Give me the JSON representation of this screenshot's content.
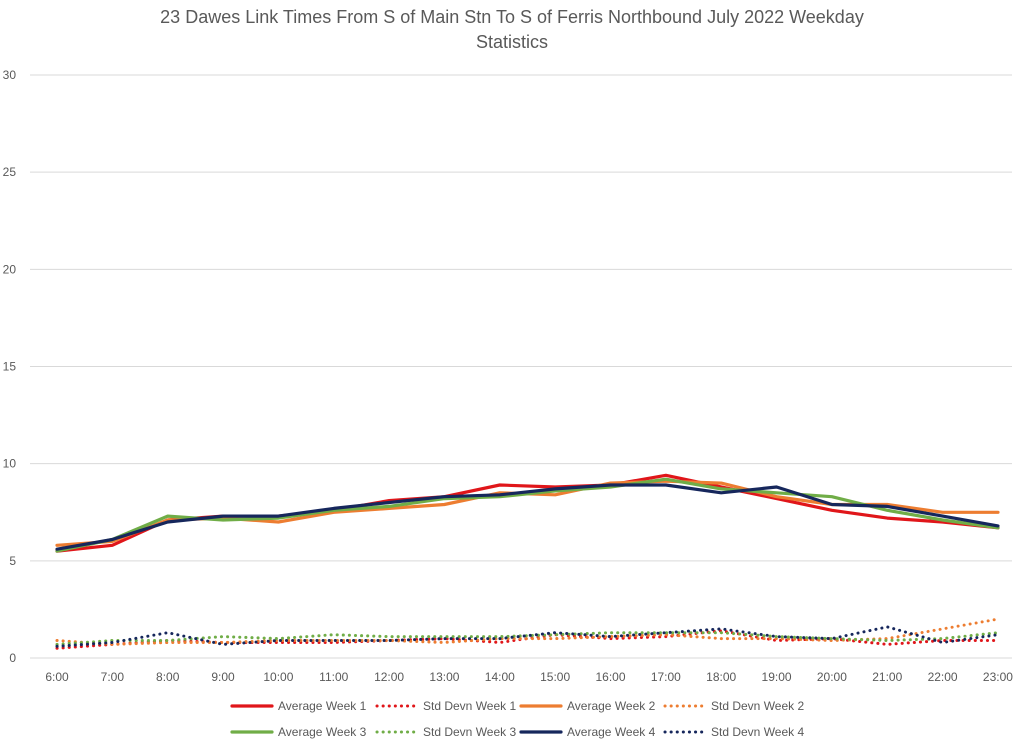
{
  "chart_data": {
    "type": "line",
    "title_lines": [
      "23 Dawes Link Times From S of Main Stn To S of Ferris Northbound July 2022 Weekday",
      "Statistics"
    ],
    "xlabel": "",
    "ylabel": "",
    "ylim": [
      0,
      30
    ],
    "y_ticks": [
      "0",
      "5",
      "10",
      "15",
      "20",
      "25",
      "30"
    ],
    "grid": true,
    "legend_position": "bottom",
    "categories": [
      "6:00",
      "7:00",
      "8:00",
      "9:00",
      "10:00",
      "11:00",
      "12:00",
      "13:00",
      "14:00",
      "15:00",
      "16:00",
      "17:00",
      "18:00",
      "19:00",
      "20:00",
      "21:00",
      "22:00",
      "23:00"
    ],
    "series": [
      {
        "name": "Average Week 1",
        "style": "solid",
        "color": "#e0161a",
        "values": [
          5.5,
          5.8,
          7.1,
          7.3,
          7.3,
          7.6,
          8.1,
          8.3,
          8.9,
          8.8,
          8.9,
          9.4,
          8.8,
          8.2,
          7.6,
          7.2,
          7.0,
          6.7
        ]
      },
      {
        "name": "Std Devn Week 1",
        "style": "dotted",
        "color": "#e0161a",
        "values": [
          0.5,
          0.7,
          0.9,
          0.8,
          0.8,
          0.8,
          0.9,
          1.0,
          0.8,
          1.2,
          1.0,
          1.1,
          1.4,
          0.9,
          1.0,
          0.7,
          0.9,
          0.9
        ]
      },
      {
        "name": "Average Week 2",
        "style": "solid",
        "color": "#ed7d31",
        "values": [
          5.8,
          6.0,
          7.1,
          7.2,
          7.0,
          7.5,
          7.7,
          7.9,
          8.5,
          8.4,
          9.0,
          9.1,
          9.0,
          8.3,
          7.9,
          7.9,
          7.5,
          7.5
        ]
      },
      {
        "name": "Std Devn Week 2",
        "style": "dotted",
        "color": "#ed7d31",
        "values": [
          0.9,
          0.7,
          0.8,
          0.8,
          0.9,
          0.9,
          0.9,
          0.8,
          1.0,
          1.0,
          1.1,
          1.2,
          1.0,
          1.0,
          0.9,
          1.0,
          1.5,
          2.0
        ]
      },
      {
        "name": "Average Week 3",
        "style": "solid",
        "color": "#70ad47",
        "values": [
          5.5,
          6.1,
          7.3,
          7.1,
          7.2,
          7.6,
          7.8,
          8.2,
          8.3,
          8.6,
          8.8,
          9.2,
          8.7,
          8.5,
          8.3,
          7.6,
          7.1,
          6.7
        ]
      },
      {
        "name": "Std Devn Week 3",
        "style": "dotted",
        "color": "#70ad47",
        "values": [
          0.7,
          0.9,
          0.9,
          1.1,
          1.0,
          1.2,
          1.1,
          1.1,
          1.1,
          1.2,
          1.3,
          1.3,
          1.3,
          1.1,
          1.0,
          0.9,
          1.0,
          1.3
        ]
      },
      {
        "name": "Average Week 4",
        "style": "solid",
        "color": "#16275c",
        "values": [
          5.6,
          6.1,
          7.0,
          7.3,
          7.3,
          7.7,
          8.0,
          8.3,
          8.4,
          8.7,
          8.9,
          8.9,
          8.5,
          8.8,
          7.9,
          7.8,
          7.3,
          6.8
        ]
      },
      {
        "name": "Std Devn Week 4",
        "style": "dotted",
        "color": "#16275c",
        "values": [
          0.6,
          0.8,
          1.3,
          0.7,
          0.9,
          0.9,
          0.9,
          1.0,
          1.0,
          1.3,
          1.1,
          1.3,
          1.5,
          1.1,
          1.0,
          1.6,
          0.8,
          1.2
        ]
      }
    ]
  }
}
